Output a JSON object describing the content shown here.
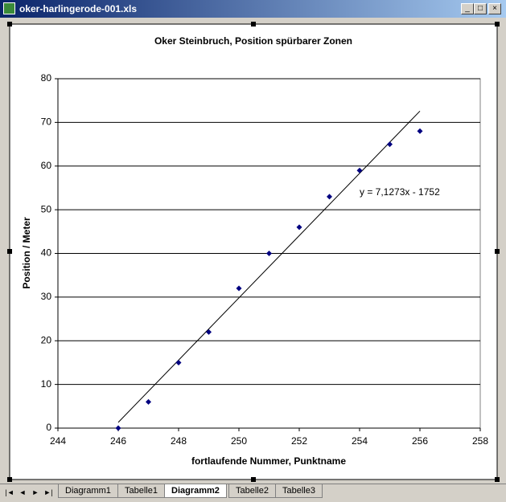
{
  "window": {
    "title": "oker-harlingerode-001.xls",
    "tabs": [
      "Diagramm1",
      "Tabelle1",
      "Diagramm2",
      "Tabelle2",
      "Tabelle3"
    ]
  },
  "chart_data": {
    "type": "scatter",
    "title": "Oker Steinbruch, Position spürbarer Zonen",
    "x_label": "fortlaufende Nummer, Punktname",
    "y_label": "Position / Meter",
    "x": [
      246,
      247,
      248,
      249,
      250,
      251,
      252,
      253,
      254,
      255,
      256
    ],
    "series": [
      {
        "color": "#000080",
        "values": [
          0,
          6,
          15,
          22,
          32,
          40,
          46,
          53,
          59,
          65,
          68
        ]
      }
    ],
    "trendline": {
      "label": "y = 7,1273x - 1752",
      "slope": 7.1273,
      "intercept": -1752,
      "color": "#000000"
    },
    "xlim": [
      244,
      258
    ],
    "xticks": [
      244,
      246,
      248,
      250,
      252,
      254,
      256,
      258
    ],
    "ylim": [
      0,
      80
    ],
    "yticks": [
      0,
      10,
      20,
      30,
      40,
      50,
      60,
      70,
      80
    ],
    "grid": true
  }
}
